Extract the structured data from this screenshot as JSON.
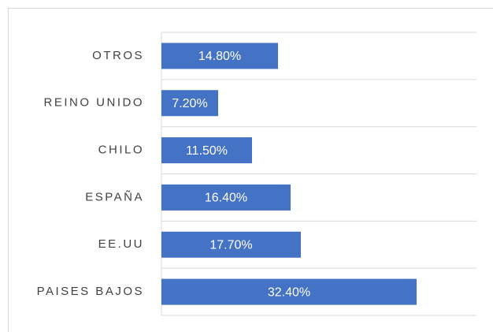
{
  "chart_data": {
    "type": "bar",
    "orientation": "horizontal",
    "categories": [
      "OTROS",
      "REINO UNIDO",
      "CHILO",
      "ESPAÑA",
      "EE.UU",
      "PAISES BAJOS"
    ],
    "values": [
      14.8,
      7.2,
      11.5,
      16.4,
      17.7,
      32.4
    ],
    "value_labels": [
      "14.80%",
      "7.20%",
      "11.50%",
      "16.40%",
      "17.70%",
      "32.40%"
    ],
    "color": "#4472c4",
    "xlim": [
      0,
      40
    ]
  }
}
